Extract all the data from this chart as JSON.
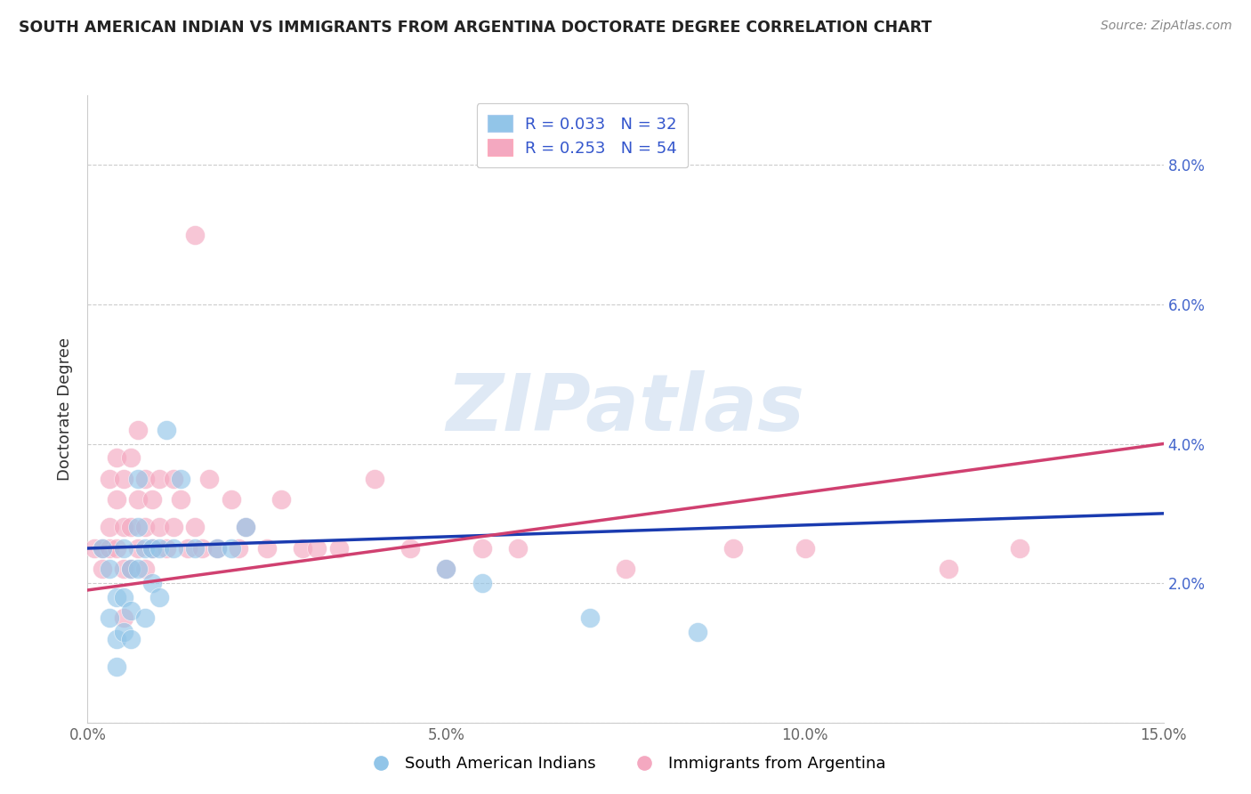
{
  "title": "SOUTH AMERICAN INDIAN VS IMMIGRANTS FROM ARGENTINA DOCTORATE DEGREE CORRELATION CHART",
  "source": "Source: ZipAtlas.com",
  "ylabel": "Doctorate Degree",
  "xlim": [
    0.0,
    0.15
  ],
  "ylim": [
    0.0,
    0.09
  ],
  "xticks": [
    0.0,
    0.05,
    0.1,
    0.15
  ],
  "xtick_labels": [
    "0.0%",
    "5.0%",
    "10.0%",
    "15.0%"
  ],
  "yticks": [
    0.0,
    0.02,
    0.04,
    0.06,
    0.08
  ],
  "ytick_labels_right": [
    "",
    "2.0%",
    "4.0%",
    "6.0%",
    "8.0%"
  ],
  "legend1_label": "R = 0.033   N = 32",
  "legend2_label": "R = 0.253   N = 54",
  "series1_color": "#92C5E8",
  "series2_color": "#F4A8C0",
  "line1_color": "#1A3BB0",
  "line2_color": "#D04070",
  "watermark_text": "ZIPatlas",
  "series1_name": "South American Indians",
  "series2_name": "Immigrants from Argentina",
  "blue_x": [
    0.002,
    0.003,
    0.003,
    0.004,
    0.004,
    0.004,
    0.005,
    0.005,
    0.005,
    0.006,
    0.006,
    0.006,
    0.007,
    0.007,
    0.007,
    0.008,
    0.008,
    0.009,
    0.009,
    0.01,
    0.01,
    0.011,
    0.012,
    0.013,
    0.015,
    0.018,
    0.02,
    0.022,
    0.05,
    0.055,
    0.07,
    0.085
  ],
  "blue_y": [
    0.025,
    0.015,
    0.022,
    0.018,
    0.012,
    0.008,
    0.025,
    0.018,
    0.013,
    0.022,
    0.016,
    0.012,
    0.035,
    0.028,
    0.022,
    0.025,
    0.015,
    0.025,
    0.02,
    0.025,
    0.018,
    0.042,
    0.025,
    0.035,
    0.025,
    0.025,
    0.025,
    0.028,
    0.022,
    0.02,
    0.015,
    0.013
  ],
  "pink_x": [
    0.001,
    0.002,
    0.002,
    0.003,
    0.003,
    0.003,
    0.004,
    0.004,
    0.004,
    0.005,
    0.005,
    0.005,
    0.005,
    0.006,
    0.006,
    0.006,
    0.007,
    0.007,
    0.007,
    0.008,
    0.008,
    0.008,
    0.009,
    0.009,
    0.01,
    0.01,
    0.011,
    0.012,
    0.012,
    0.013,
    0.014,
    0.015,
    0.015,
    0.016,
    0.017,
    0.018,
    0.02,
    0.021,
    0.022,
    0.025,
    0.027,
    0.03,
    0.032,
    0.035,
    0.04,
    0.045,
    0.05,
    0.055,
    0.06,
    0.075,
    0.09,
    0.1,
    0.12,
    0.13
  ],
  "pink_y": [
    0.025,
    0.025,
    0.022,
    0.025,
    0.035,
    0.028,
    0.025,
    0.038,
    0.032,
    0.022,
    0.028,
    0.035,
    0.015,
    0.038,
    0.028,
    0.022,
    0.042,
    0.032,
    0.025,
    0.035,
    0.028,
    0.022,
    0.032,
    0.025,
    0.035,
    0.028,
    0.025,
    0.035,
    0.028,
    0.032,
    0.025,
    0.028,
    0.07,
    0.025,
    0.035,
    0.025,
    0.032,
    0.025,
    0.028,
    0.025,
    0.032,
    0.025,
    0.025,
    0.025,
    0.035,
    0.025,
    0.022,
    0.025,
    0.025,
    0.022,
    0.025,
    0.025,
    0.022,
    0.025
  ]
}
